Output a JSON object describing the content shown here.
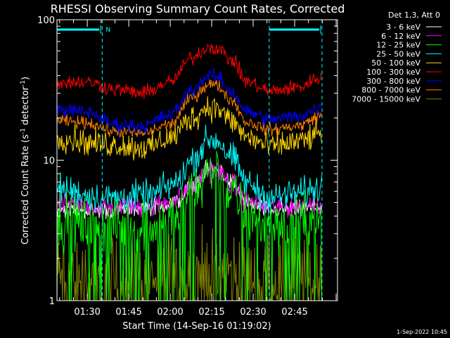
{
  "chart_data": {
    "type": "line",
    "title": "RHESSI Observing Summary Count Rates, Corrected",
    "xlabel": "Start Time (14-Sep-16 01:19:02)",
    "ylabel": "Corrected Count Rate (s",
    "ylabel_sup": "-1",
    "ylabel_tail": " detector",
    "ylabel_close": ")",
    "yscale": "log",
    "ylim": [
      1,
      100
    ],
    "xlim_minutes": [
      79.03,
      180.5
    ],
    "y_ticks": [
      {
        "value": 1,
        "label": "1"
      },
      {
        "value": 10,
        "label": "10"
      },
      {
        "value": 100,
        "label": "100"
      }
    ],
    "x_ticks": [
      {
        "minute": 90,
        "label": "01:30"
      },
      {
        "minute": 105,
        "label": "01:45"
      },
      {
        "minute": 120,
        "label": "02:00"
      },
      {
        "minute": 135,
        "label": "02:15"
      },
      {
        "minute": 150,
        "label": "02:30"
      },
      {
        "minute": 165,
        "label": "02:45"
      }
    ],
    "legend_title": "Det 1,3, Att 0",
    "legend_position": "top-right",
    "footer_timestamp": "1-Sep-2022 10:45",
    "night_marker_label": "N",
    "night_intervals": [
      [
        79.03,
        95.4
      ],
      [
        155.8,
        174.9
      ]
    ],
    "event_lines_minutes": [
      95.4,
      155.8,
      174.9
    ],
    "series": [
      {
        "name": "3 - 6 keV",
        "color": "#ffffff",
        "keyframes": [
          [
            79,
            4.5
          ],
          [
            96,
            4.4
          ],
          [
            112,
            4.6
          ],
          [
            122,
            5.0
          ],
          [
            128,
            6.6
          ],
          [
            134,
            8.6
          ],
          [
            137,
            8.6
          ],
          [
            142,
            7.0
          ],
          [
            148,
            4.9
          ],
          [
            156,
            4.4
          ],
          [
            166,
            4.5
          ],
          [
            175,
            4.6
          ]
        ],
        "noise": 0.07,
        "floor": 1.0
      },
      {
        "name": "6 - 12 keV",
        "color": "#ff00ff",
        "keyframes": [
          [
            79,
            4.8
          ],
          [
            96,
            4.6
          ],
          [
            112,
            4.7
          ],
          [
            122,
            5.2
          ],
          [
            128,
            6.6
          ],
          [
            134,
            8.5
          ],
          [
            137,
            8.5
          ],
          [
            142,
            6.8
          ],
          [
            148,
            5.0
          ],
          [
            156,
            4.6
          ],
          [
            166,
            4.7
          ],
          [
            175,
            4.9
          ]
        ],
        "noise": 0.09,
        "floor": 1.0
      },
      {
        "name": "12 - 25 keV",
        "color": "#00ff00",
        "keyframes": [
          [
            79,
            3.7
          ],
          [
            96,
            3.4
          ],
          [
            112,
            3.5
          ],
          [
            122,
            4.0
          ],
          [
            128,
            5.6
          ],
          [
            134,
            8.5
          ],
          [
            137,
            8.4
          ],
          [
            142,
            5.8
          ],
          [
            148,
            4.0
          ],
          [
            156,
            3.5
          ],
          [
            166,
            3.6
          ],
          [
            175,
            3.8
          ]
        ],
        "noise": 0.22,
        "floor": 1.0
      },
      {
        "name": "25 - 50 keV",
        "color": "#00ffff",
        "keyframes": [
          [
            79,
            6.3
          ],
          [
            96,
            5.4
          ],
          [
            112,
            5.6
          ],
          [
            122,
            6.8
          ],
          [
            128,
            10.0
          ],
          [
            134,
            14.0
          ],
          [
            137,
            13.8
          ],
          [
            142,
            10.5
          ],
          [
            148,
            6.8
          ],
          [
            156,
            5.4
          ],
          [
            166,
            5.8
          ],
          [
            175,
            6.4
          ]
        ],
        "noise": 0.12,
        "floor": 1.0
      },
      {
        "name": "50 - 100 keV",
        "color": "#ffd700",
        "keyframes": [
          [
            79,
            14.5
          ],
          [
            96,
            13.0
          ],
          [
            112,
            12.3
          ],
          [
            120,
            14.5
          ],
          [
            128,
            20.0
          ],
          [
            134,
            24.0
          ],
          [
            137,
            23.5
          ],
          [
            142,
            19.0
          ],
          [
            148,
            14.5
          ],
          [
            156,
            12.5
          ],
          [
            166,
            13.5
          ],
          [
            175,
            15.5
          ]
        ],
        "noise": 0.11,
        "floor": 1.0
      },
      {
        "name": "100 - 300 keV",
        "color": "#ff0000",
        "keyframes": [
          [
            79,
            36.0
          ],
          [
            90,
            36.0
          ],
          [
            100,
            32.0
          ],
          [
            110,
            30.0
          ],
          [
            120,
            36.0
          ],
          [
            128,
            54.0
          ],
          [
            134,
            64.0
          ],
          [
            137,
            63.0
          ],
          [
            142,
            52.0
          ],
          [
            148,
            36.0
          ],
          [
            156,
            31.0
          ],
          [
            166,
            33.0
          ],
          [
            175,
            39.0
          ]
        ],
        "noise": 0.06,
        "floor": 1.0
      },
      {
        "name": "300 - 800 keV",
        "color": "#0000ff",
        "keyframes": [
          [
            79,
            23.0
          ],
          [
            90,
            22.0
          ],
          [
            100,
            18.0
          ],
          [
            110,
            17.5
          ],
          [
            120,
            21.0
          ],
          [
            128,
            32.0
          ],
          [
            134,
            40.0
          ],
          [
            137,
            39.0
          ],
          [
            142,
            31.0
          ],
          [
            148,
            22.0
          ],
          [
            156,
            19.5
          ],
          [
            166,
            20.5
          ],
          [
            175,
            24.0
          ]
        ],
        "noise": 0.06,
        "floor": 1.0
      },
      {
        "name": "800 - 7000 keV",
        "color": "#ff8000",
        "keyframes": [
          [
            79,
            19.0
          ],
          [
            90,
            18.5
          ],
          [
            100,
            16.0
          ],
          [
            110,
            15.5
          ],
          [
            120,
            18.0
          ],
          [
            128,
            28.0
          ],
          [
            134,
            35.0
          ],
          [
            137,
            34.0
          ],
          [
            142,
            27.0
          ],
          [
            148,
            18.5
          ],
          [
            156,
            16.5
          ],
          [
            166,
            17.5
          ],
          [
            175,
            21.0
          ]
        ],
        "noise": 0.05,
        "floor": 1.0
      },
      {
        "name": "7000 - 15000 keV",
        "color": "#808000",
        "keyframes": [
          [
            79,
            1.5
          ],
          [
            96,
            1.4
          ],
          [
            112,
            1.5
          ],
          [
            125,
            1.5
          ],
          [
            135,
            1.6
          ],
          [
            148,
            1.5
          ],
          [
            175,
            1.5
          ]
        ],
        "noise": 0.35,
        "floor": 1.0
      }
    ]
  }
}
